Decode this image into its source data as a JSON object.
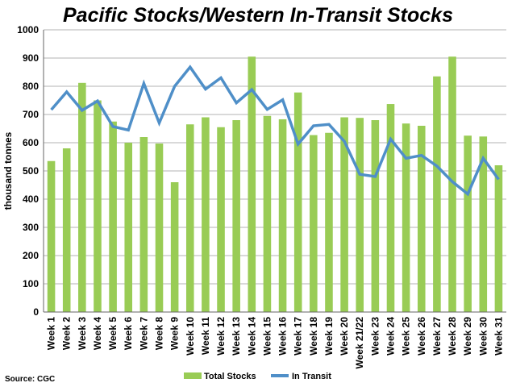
{
  "chart_data": {
    "type": "bar",
    "title": "Pacific Stocks/Western In-Transit Stocks",
    "ylabel": "thousand  tonnes",
    "xlabel": "",
    "ylim": [
      0,
      1000
    ],
    "yticks": [
      "0",
      "100",
      "200",
      "300",
      "400",
      "500",
      "600",
      "700",
      "800",
      "900",
      "1000"
    ],
    "grid": true,
    "legend_position": "bottom",
    "categories": [
      "Week 1",
      "Week 2",
      "Week 3",
      "Week 4",
      "Week 5",
      "Week 6",
      "Week 7",
      "Week 8",
      "Week 9",
      "Week 10",
      "Week 11",
      "Week 12",
      "Week 13",
      "Week 14",
      "Week 15",
      "Week 16",
      "Week 17",
      "Week 18",
      "Week 19",
      "Week 20",
      "Week 21/22",
      "Week 23",
      "Week 24",
      "Week 25",
      "Week 26",
      "Week 27",
      "Week 28",
      "Week 29",
      "Week 30",
      "Week 31"
    ],
    "series": [
      {
        "name": "Total Stocks",
        "type": "bar",
        "color": "#99cc55",
        "values": [
          535,
          580,
          812,
          750,
          675,
          600,
          620,
          597,
          460,
          665,
          690,
          655,
          680,
          905,
          695,
          683,
          778,
          627,
          635,
          690,
          688,
          680,
          737,
          668,
          660,
          835,
          905,
          625,
          622,
          520
        ]
      },
      {
        "name": "In Transit",
        "type": "line",
        "color": "#4f8fc8",
        "values": [
          717,
          780,
          715,
          748,
          657,
          645,
          810,
          670,
          800,
          868,
          790,
          830,
          741,
          788,
          718,
          752,
          595,
          660,
          665,
          605,
          488,
          480,
          613,
          545,
          555,
          517,
          462,
          418,
          545,
          470
        ]
      }
    ]
  },
  "source": "Source: CGC"
}
